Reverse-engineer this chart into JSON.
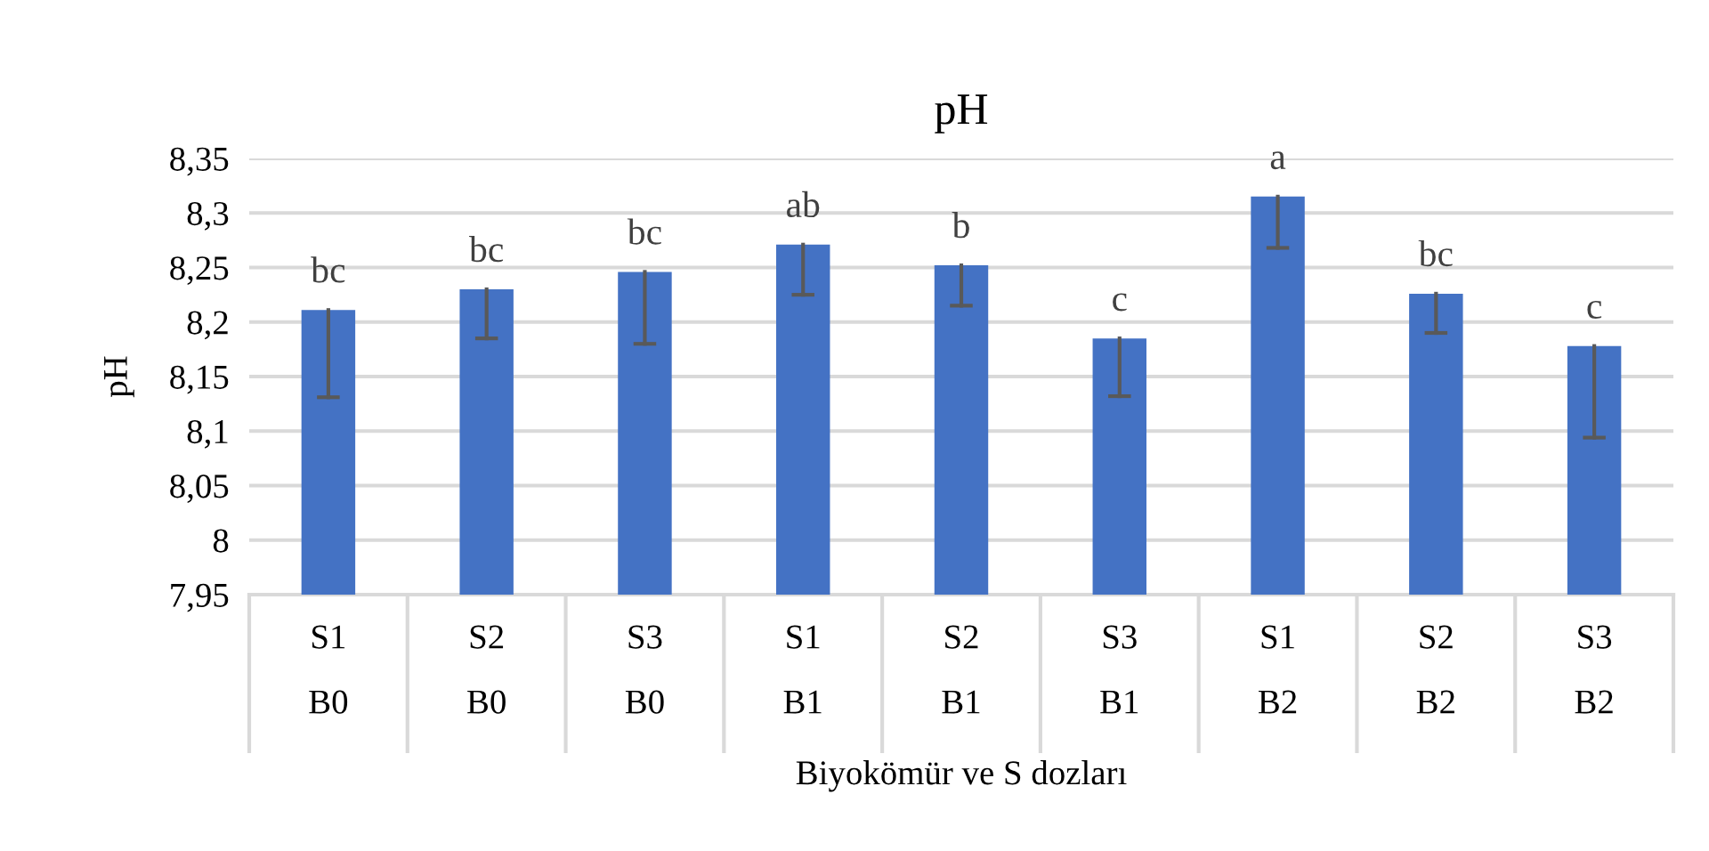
{
  "chart_data": {
    "type": "bar",
    "title": "pH",
    "xlabel": "Biyokömür ve S dozları",
    "ylabel": "pH",
    "categories": [
      "S1\nB0",
      "S2\nB0",
      "S3\nB0",
      "S1\nB1",
      "S2\nB1",
      "S3\nB1",
      "S1\nB2",
      "S2\nB2",
      "S3\nB2"
    ],
    "values": [
      8.211,
      8.23,
      8.246,
      8.271,
      8.252,
      8.185,
      8.315,
      8.226,
      8.178
    ],
    "errors": [
      [
        8.131,
        8.211
      ],
      [
        8.185,
        8.23
      ],
      [
        8.18,
        8.246
      ],
      [
        8.225,
        8.271
      ],
      [
        8.215,
        8.252
      ],
      [
        8.132,
        8.185
      ],
      [
        8.268,
        8.315
      ],
      [
        8.19,
        8.226
      ],
      [
        8.094,
        8.178
      ]
    ],
    "color": "#4472c4",
    "ylim": [
      7.95,
      8.35
    ],
    "yticks": [
      {
        "value": 7.95,
        "label": "7,95"
      },
      {
        "value": 8.0,
        "label": "8"
      },
      {
        "value": 8.05,
        "label": "8,05"
      },
      {
        "value": 8.1,
        "label": "8,1"
      },
      {
        "value": 8.15,
        "label": "8,15"
      },
      {
        "value": 8.2,
        "label": "8,2"
      },
      {
        "value": 8.25,
        "label": "8,25"
      },
      {
        "value": 8.3,
        "label": "8,3"
      },
      {
        "value": 8.35,
        "label": "8,35"
      }
    ],
    "grid": "y",
    "annotations": [
      {
        "text": "bc",
        "x": "S1\nB0",
        "y": 8.211
      },
      {
        "text": "bc",
        "x": "S2\nB0",
        "y": 8.23
      },
      {
        "text": "bc",
        "x": "S3\nB0",
        "y": 8.246
      },
      {
        "text": "ab",
        "x": "S1\nB1",
        "y": 8.271
      },
      {
        "text": "b",
        "x": "S2\nB1",
        "y": 8.252
      },
      {
        "text": "c",
        "x": "S3\nB1",
        "y": 8.185
      },
      {
        "text": "a",
        "x": "S1\nB2",
        "y": 8.315
      },
      {
        "text": "bc",
        "x": "S2\nB2",
        "y": 8.226
      },
      {
        "text": "c",
        "x": "S3\nB2",
        "y": 8.178
      }
    ]
  }
}
